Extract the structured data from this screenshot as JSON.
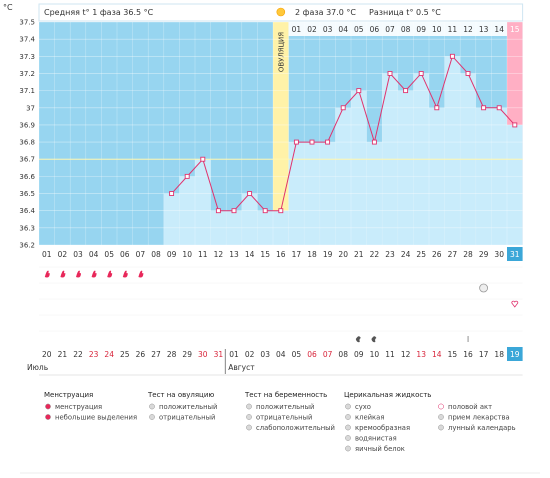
{
  "chart_data": {
    "type": "line",
    "title": "",
    "ylabel": "°C",
    "ylim": [
      36.2,
      37.5
    ],
    "y_ticks": [
      "37.5",
      "37.4",
      "37.3",
      "37.2",
      "37.1",
      "37",
      "36.9",
      "36.8",
      "36.7",
      "36.6",
      "36.5",
      "36.4",
      "36.3",
      "36.2"
    ],
    "x_days": [
      "01",
      "02",
      "03",
      "04",
      "05",
      "06",
      "07",
      "08",
      "09",
      "10",
      "11",
      "12",
      "13",
      "14",
      "15",
      "16",
      "17",
      "18",
      "19",
      "20",
      "21",
      "22",
      "23",
      "24",
      "25",
      "26",
      "27",
      "28",
      "29",
      "30",
      "31"
    ],
    "phase2_days": [
      "01",
      "02",
      "03",
      "04",
      "05",
      "06",
      "07",
      "08",
      "09",
      "10",
      "11",
      "12",
      "13",
      "14",
      "15"
    ],
    "current_cycle_day": "31",
    "current_date": "19",
    "header": {
      "phase1": "Средняя t° 1 фаза 36.5 °C",
      "phase2": "2 фаза 37.0 °C",
      "diff": "Разница t° 0.5 °C",
      "ovulation": "ОВУЛЯЦИЯ"
    },
    "series": [
      {
        "values": [
          null,
          null,
          null,
          null,
          null,
          null,
          null,
          null,
          36.5,
          36.6,
          36.7,
          36.4,
          36.4,
          36.5,
          36.4,
          36.4,
          36.8,
          36.8,
          36.8,
          37.0,
          37.1,
          36.8,
          37.2,
          37.1,
          37.2,
          37.0,
          37.3,
          37.2,
          37.0,
          37.0,
          36.9
        ]
      }
    ],
    "coverline": 36.7,
    "dates": [
      "20",
      "21",
      "22",
      "23",
      "24",
      "25",
      "26",
      "27",
      "28",
      "29",
      "30",
      "31",
      "01",
      "02",
      "03",
      "04",
      "05",
      "06",
      "07",
      "08",
      "09",
      "10",
      "11",
      "12",
      "13",
      "14",
      "15",
      "16",
      "17",
      "18",
      "19"
    ],
    "dates_red": [
      3,
      4,
      10,
      11,
      17,
      18,
      24,
      25
    ],
    "months": [
      "Июль",
      "Август"
    ],
    "menstruation_days": [
      1,
      2,
      3,
      4,
      5,
      6,
      7
    ],
    "mucus_days": [
      21,
      22
    ],
    "pill_day": 28,
    "test_day": 29,
    "intercourse_day": 31,
    "colors": {
      "phase1": "#97d5f0",
      "phase2": "#c9ecfb",
      "pink": "#ffafc4",
      "ovul": "#fff2a8",
      "line": "#e0336e",
      "today": "#3ba7d8"
    }
  },
  "legend": {
    "groups": [
      {
        "title": "Менструация",
        "items": [
          "менструация",
          "небольшие выделения"
        ]
      },
      {
        "title": "Тест на овуляцию",
        "items": [
          "положительный",
          "отрицательный"
        ]
      },
      {
        "title": "Тест на беременность",
        "items": [
          "положительный",
          "отрицательный",
          "слабоположительный"
        ]
      },
      {
        "title": "Церикальная жидкость",
        "items": [
          "сухо",
          "клейкая",
          "кремообразная",
          "водянистая",
          "яичный белок"
        ]
      },
      {
        "title": "",
        "items": [
          "половой акт",
          "прием лекарства",
          "лунный календарь"
        ]
      }
    ]
  }
}
